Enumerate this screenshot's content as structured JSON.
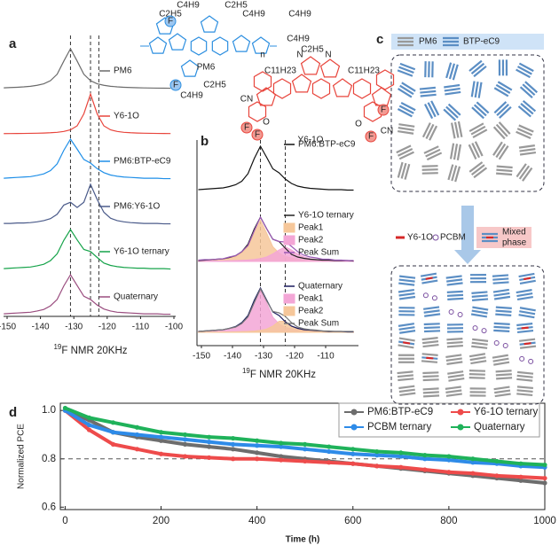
{
  "chart_data": [
    {
      "type": "spectra",
      "label": "a",
      "xlabel": {
        "sup": "19",
        "text": "F NMR 20KHz"
      },
      "xlim": [
        -150,
        -100
      ],
      "xticks": [
        -150,
        -140,
        -130,
        -120,
        -110,
        -100
      ],
      "vlines": [
        -131,
        -125,
        -122.5
      ],
      "x": [
        -151,
        -149,
        -147,
        -145,
        -143,
        -141,
        -139,
        -137,
        -135,
        -133,
        -131,
        -129,
        -127,
        -125,
        -123,
        -121,
        -119,
        -117,
        -115,
        -113,
        -111,
        -109,
        -107,
        -105,
        -103,
        -101
      ],
      "series": [
        {
          "name": "PM6",
          "color": "#6b6b6b",
          "values": [
            0.02,
            0.027,
            0.034,
            0.044,
            0.059,
            0.083,
            0.12,
            0.2,
            0.36,
            0.69,
            1,
            0.69,
            0.36,
            0.2,
            0.12,
            0.083,
            0.059,
            0.044,
            0.034,
            0.027,
            0.022,
            0.018,
            0.015,
            0.013,
            0.011,
            0.01
          ]
        },
        {
          "name": "Y6-1O",
          "color": "#e8453c",
          "values": [
            0.006,
            0.007,
            0.008,
            0.01,
            0.012,
            0.015,
            0.02,
            0.027,
            0.038,
            0.059,
            0.1,
            0.2,
            0.5,
            1,
            0.5,
            0.2,
            0.1,
            0.059,
            0.038,
            0.027,
            0.02,
            0.015,
            0.012,
            0.01,
            0.008,
            0.007
          ]
        },
        {
          "name": "PM6:BTP-eC9",
          "color": "#1f8fe8",
          "values": [
            0.02,
            0.03,
            0.04,
            0.05,
            0.06,
            0.09,
            0.13,
            0.21,
            0.38,
            0.72,
            1,
            0.75,
            0.49,
            0.4,
            0.26,
            0.16,
            0.1,
            0.07,
            0.05,
            0.04,
            0.03,
            0.02,
            0.02,
            0.02,
            0.01,
            0.01
          ]
        },
        {
          "name": "PM6:Y6-1O",
          "color": "#4b5b8a",
          "values": [
            0.02,
            0.02,
            0.03,
            0.03,
            0.04,
            0.06,
            0.09,
            0.14,
            0.25,
            0.48,
            0.55,
            0.42,
            0.55,
            1,
            0.62,
            0.3,
            0.15,
            0.09,
            0.06,
            0.04,
            0.03,
            0.02,
            0.02,
            0.02,
            0.01,
            0.01
          ]
        },
        {
          "name": "Y6-1O ternary",
          "color": "#16a34a",
          "values": [
            0.02,
            0.03,
            0.04,
            0.05,
            0.06,
            0.09,
            0.13,
            0.22,
            0.39,
            0.73,
            1,
            0.74,
            0.5,
            0.45,
            0.3,
            0.16,
            0.1,
            0.07,
            0.05,
            0.04,
            0.03,
            0.03,
            0.02,
            0.02,
            0.02,
            0.01
          ]
        },
        {
          "name": "Quaternary",
          "color": "#9a4d7f",
          "values": [
            0.02,
            0.03,
            0.04,
            0.05,
            0.06,
            0.09,
            0.13,
            0.22,
            0.38,
            0.72,
            1,
            0.73,
            0.46,
            0.38,
            0.24,
            0.14,
            0.09,
            0.06,
            0.05,
            0.04,
            0.03,
            0.02,
            0.02,
            0.02,
            0.01,
            0.01
          ]
        }
      ]
    },
    {
      "type": "spectra",
      "label": "b",
      "xlabel": {
        "sup": "19",
        "text": "F NMR 20KHz"
      },
      "xlim": [
        -150,
        -100
      ],
      "xticks": [
        -150,
        -140,
        -130,
        -120,
        -110
      ],
      "vlines": [
        -131,
        -123
      ],
      "x": [
        -151,
        -149,
        -147,
        -145,
        -143,
        -141,
        -139,
        -137,
        -135,
        -133,
        -131,
        -129,
        -127,
        -125,
        -123,
        -121,
        -119,
        -117,
        -115,
        -113,
        -111,
        -109,
        -107,
        -105,
        -103,
        -101
      ],
      "series": [
        {
          "name": "PM6:BTP-eC9",
          "color": "#111111",
          "values": [
            0.02,
            0.03,
            0.04,
            0.05,
            0.06,
            0.09,
            0.13,
            0.21,
            0.38,
            0.72,
            1,
            0.75,
            0.49,
            0.4,
            0.26,
            0.16,
            0.1,
            0.07,
            0.05,
            0.04,
            0.03,
            0.02,
            0.02,
            0.02,
            0.01,
            0.01
          ]
        },
        {
          "name": "Y6-1O ternary",
          "color": "#222222",
          "values": [
            0.02,
            0.03,
            0.04,
            0.05,
            0.06,
            0.09,
            0.13,
            0.22,
            0.39,
            0.73,
            1,
            0.74,
            0.5,
            0.45,
            0.3,
            0.16,
            0.1,
            0.07,
            0.05,
            0.04,
            0.03,
            0.03,
            0.02,
            0.02,
            0.02,
            0.01
          ],
          "fits": [
            {
              "name": "Peak1",
              "color": "#f6c79a",
              "fill": true,
              "values": [
                0.02,
                0.03,
                0.03,
                0.04,
                0.05,
                0.08,
                0.11,
                0.19,
                0.33,
                0.64,
                0.93,
                0.64,
                0.33,
                0.19,
                0.11,
                0.08,
                0.05,
                0.04,
                0.03,
                0.03,
                0.02,
                0.02,
                0.01,
                0.01,
                0.01,
                0.01
              ]
            },
            {
              "name": "Peak2",
              "color": "#f3a6d6",
              "fill": true,
              "values": [
                0.007,
                0.008,
                0.009,
                0.011,
                0.013,
                0.016,
                0.019,
                0.025,
                0.033,
                0.046,
                0.066,
                0.1,
                0.17,
                0.26,
                0.33,
                0.26,
                0.17,
                0.1,
                0.066,
                0.046,
                0.033,
                0.025,
                0.019,
                0.016,
                0.013,
                0.011
              ]
            },
            {
              "name": "Peak Sum",
              "color": "#9b59b6",
              "fill": false,
              "values": [
                0.03,
                0.04,
                0.04,
                0.05,
                0.06,
                0.1,
                0.13,
                0.22,
                0.36,
                0.69,
                1,
                0.74,
                0.5,
                0.45,
                0.44,
                0.34,
                0.22,
                0.14,
                0.1,
                0.08,
                0.05,
                0.05,
                0.03,
                0.03,
                0.02,
                0.02
              ]
            }
          ]
        },
        {
          "name": "Quaternary",
          "color": "#1a1a5e",
          "values": [
            0.02,
            0.03,
            0.04,
            0.05,
            0.06,
            0.09,
            0.13,
            0.22,
            0.38,
            0.72,
            1,
            0.73,
            0.46,
            0.38,
            0.24,
            0.14,
            0.09,
            0.06,
            0.05,
            0.04,
            0.03,
            0.02,
            0.02,
            0.02,
            0.01,
            0.01
          ],
          "fits": [
            {
              "name": "Peak1",
              "color": "#f3a6d6",
              "fill": true,
              "values": [
                0.02,
                0.03,
                0.03,
                0.04,
                0.05,
                0.08,
                0.11,
                0.19,
                0.34,
                0.66,
                0.95,
                0.66,
                0.34,
                0.19,
                0.11,
                0.08,
                0.05,
                0.04,
                0.03,
                0.03,
                0.02,
                0.02,
                0.01,
                0.01,
                0.01,
                0.01
              ]
            },
            {
              "name": "Peak2",
              "color": "#f6c79a",
              "fill": true,
              "values": [
                0.003,
                0.004,
                0.005,
                0.006,
                0.007,
                0.008,
                0.011,
                0.014,
                0.019,
                0.028,
                0.045,
                0.073,
                0.14,
                0.25,
                0.25,
                0.14,
                0.073,
                0.045,
                0.028,
                0.019,
                0.014,
                0.011,
                0.008,
                0.007,
                0.006,
                0.005
              ]
            },
            {
              "name": "Peak Sum",
              "color": "#777777",
              "fill": false,
              "values": [
                0.02,
                0.03,
                0.04,
                0.05,
                0.06,
                0.09,
                0.12,
                0.2,
                0.35,
                0.67,
                0.98,
                0.71,
                0.47,
                0.44,
                0.36,
                0.22,
                0.12,
                0.08,
                0.06,
                0.05,
                0.03,
                0.03,
                0.02,
                0.02,
                0.02,
                0.02
              ]
            }
          ]
        }
      ]
    },
    {
      "type": "line",
      "label": "d",
      "xlabel": "Time (h)",
      "ylabel": "Normalized PCE",
      "xlim": [
        -10,
        1000
      ],
      "xticks": [
        0,
        200,
        400,
        600,
        800,
        1000
      ],
      "ylim": [
        0.59,
        1.03
      ],
      "yticks": [
        0.6,
        0.8,
        {
          "value": 1,
          "label": "1.0"
        }
      ],
      "reference_line": 0.8,
      "x": [
        0,
        50,
        100,
        150,
        200,
        250,
        300,
        350,
        400,
        450,
        500,
        550,
        600,
        650,
        700,
        750,
        800,
        850,
        900,
        950,
        1000
      ],
      "series": [
        {
          "name": "PM6:BTP-eC9",
          "color": "#6d6d6d",
          "values": [
            1,
            0.96,
            0.91,
            0.89,
            0.875,
            0.86,
            0.85,
            0.84,
            0.825,
            0.81,
            0.8,
            0.79,
            0.78,
            0.77,
            0.76,
            0.75,
            0.74,
            0.73,
            0.72,
            0.71,
            0.7
          ]
        },
        {
          "name": "Y6-1O ternary",
          "color": "#ee4b4b",
          "values": [
            1,
            0.92,
            0.86,
            0.84,
            0.82,
            0.81,
            0.805,
            0.8,
            0.8,
            0.795,
            0.79,
            0.785,
            0.78,
            0.77,
            0.765,
            0.755,
            0.745,
            0.74,
            0.73,
            0.725,
            0.72
          ]
        },
        {
          "name": "PCBM ternary",
          "color": "#2e8be8",
          "values": [
            1,
            0.94,
            0.91,
            0.9,
            0.89,
            0.88,
            0.87,
            0.86,
            0.855,
            0.85,
            0.84,
            0.83,
            0.82,
            0.815,
            0.81,
            0.8,
            0.795,
            0.785,
            0.78,
            0.77,
            0.765
          ]
        },
        {
          "name": "Quaternary",
          "color": "#1fb25a",
          "values": [
            1.01,
            0.97,
            0.95,
            0.93,
            0.91,
            0.9,
            0.89,
            0.885,
            0.875,
            0.865,
            0.86,
            0.85,
            0.84,
            0.83,
            0.825,
            0.815,
            0.81,
            0.8,
            0.79,
            0.78,
            0.775
          ]
        }
      ]
    }
  ],
  "structures": {
    "pm6": {
      "name": "PM6",
      "groups": [
        "C4H9",
        "C2H5",
        "C2H5",
        "C4H9",
        "C4H9",
        "C2H5",
        "C4H9",
        "F",
        "F",
        "n"
      ]
    },
    "y6": {
      "name": "Y6-1O",
      "groups": [
        "C4H9",
        "C2H5",
        "N",
        "N",
        "C11H23",
        "C11H23",
        "CN",
        "CN",
        "O",
        "O",
        "F",
        "F",
        "F",
        "F"
      ]
    }
  },
  "diagram": {
    "label": "c",
    "legend_top": [
      "PM6",
      "BTP-eC9"
    ],
    "legend_mid": [
      "Y6-1O",
      "PCBM",
      "Mixed",
      "phase"
    ]
  }
}
